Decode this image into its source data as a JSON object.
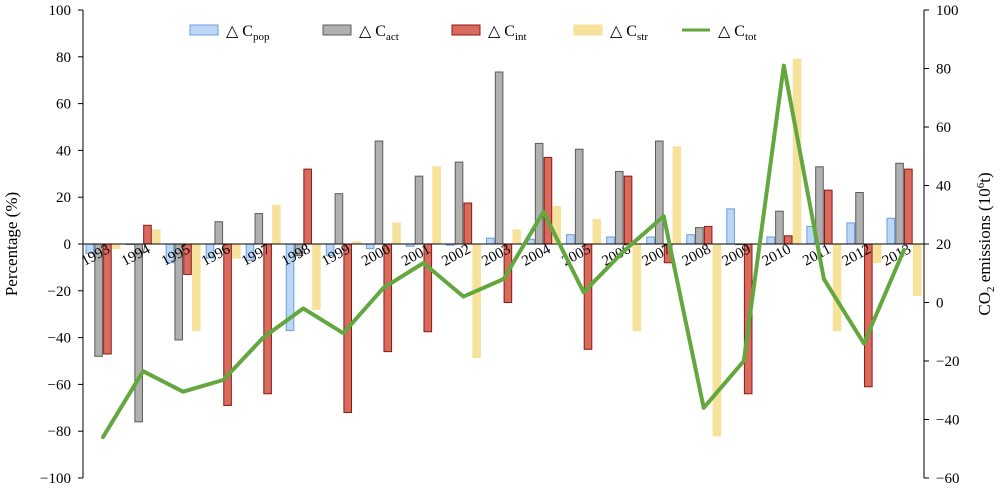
{
  "chart_data": {
    "type": "bar",
    "categories": [
      "1993",
      "1994",
      "1995",
      "1996",
      "1997",
      "1998",
      "1999",
      "2000",
      "2001",
      "2002",
      "2003",
      "2004",
      "2005",
      "2006",
      "2007",
      "2008",
      "2009",
      "2010",
      "2011",
      "2012",
      "2013"
    ],
    "series": [
      {
        "name": "△ C",
        "subscript": "pop",
        "color": "#bcd6f5",
        "stroke": "#6a9fde",
        "axis": "left",
        "type": "bar",
        "values": [
          -4,
          0,
          -8,
          -6,
          -7,
          -37,
          -5,
          -2,
          -1,
          -0.5,
          2.5,
          2,
          4,
          3,
          3,
          4,
          15,
          3,
          7.5,
          9,
          11
        ]
      },
      {
        "name": "△ C",
        "subscript": "act",
        "color": "#b0b0b0",
        "stroke": "#5c5c5c",
        "axis": "left",
        "type": "bar",
        "values": [
          -48,
          -76,
          -41,
          9.5,
          13,
          -5,
          21.5,
          44,
          29,
          35,
          73.5,
          43,
          40.5,
          31,
          44,
          7,
          0,
          14,
          33,
          22,
          34.5
        ]
      },
      {
        "name": "△ C",
        "subscript": "int",
        "color": "#d96a5e",
        "stroke": "#8b1a12",
        "axis": "left",
        "type": "bar",
        "values": [
          -47,
          8,
          -13,
          -69,
          -64,
          32,
          -72,
          -46,
          -37.5,
          17.5,
          -25,
          37,
          -45,
          29,
          -8,
          7.5,
          -64,
          3.5,
          23,
          -61,
          32
        ]
      },
      {
        "name": "△ C",
        "subscript": "str",
        "color": "#f7e29c",
        "stroke": "#f7e29c",
        "axis": "left",
        "type": "bar",
        "values": [
          -2,
          6,
          -37,
          -6,
          16.5,
          -28,
          1,
          9,
          33,
          -48.5,
          6,
          16,
          10.5,
          -37,
          41.5,
          -82,
          0,
          79,
          -37,
          -8,
          -22
        ]
      },
      {
        "name": "△ C",
        "subscript": "tot",
        "color": "#63a83f",
        "axis": "right",
        "type": "line",
        "values": [
          -46,
          -23.5,
          -30.5,
          -26.5,
          -12,
          -2,
          -10.5,
          5,
          13.5,
          2,
          8,
          31,
          3.5,
          17.5,
          29.5,
          -36,
          -20,
          81,
          8,
          -14,
          18
        ]
      }
    ],
    "ylabel": "Percentage (%)",
    "y2label": {
      "prefix": "CO",
      "sub": "2",
      "middle": " emissions (10",
      "sup": "6",
      "suffix": "t)"
    },
    "ylim": [
      -100,
      100
    ],
    "yticks": [
      "100",
      "80",
      "60",
      "40",
      "20",
      "0",
      "−20",
      "−40",
      "−60",
      "−80",
      "−100"
    ],
    "y2lim": [
      -60,
      100
    ],
    "y2ticks": [
      "100",
      "80",
      "60",
      "40",
      "20",
      "0",
      "−20",
      "−40",
      "−60"
    ],
    "legend_placement": "top",
    "grid": false
  }
}
